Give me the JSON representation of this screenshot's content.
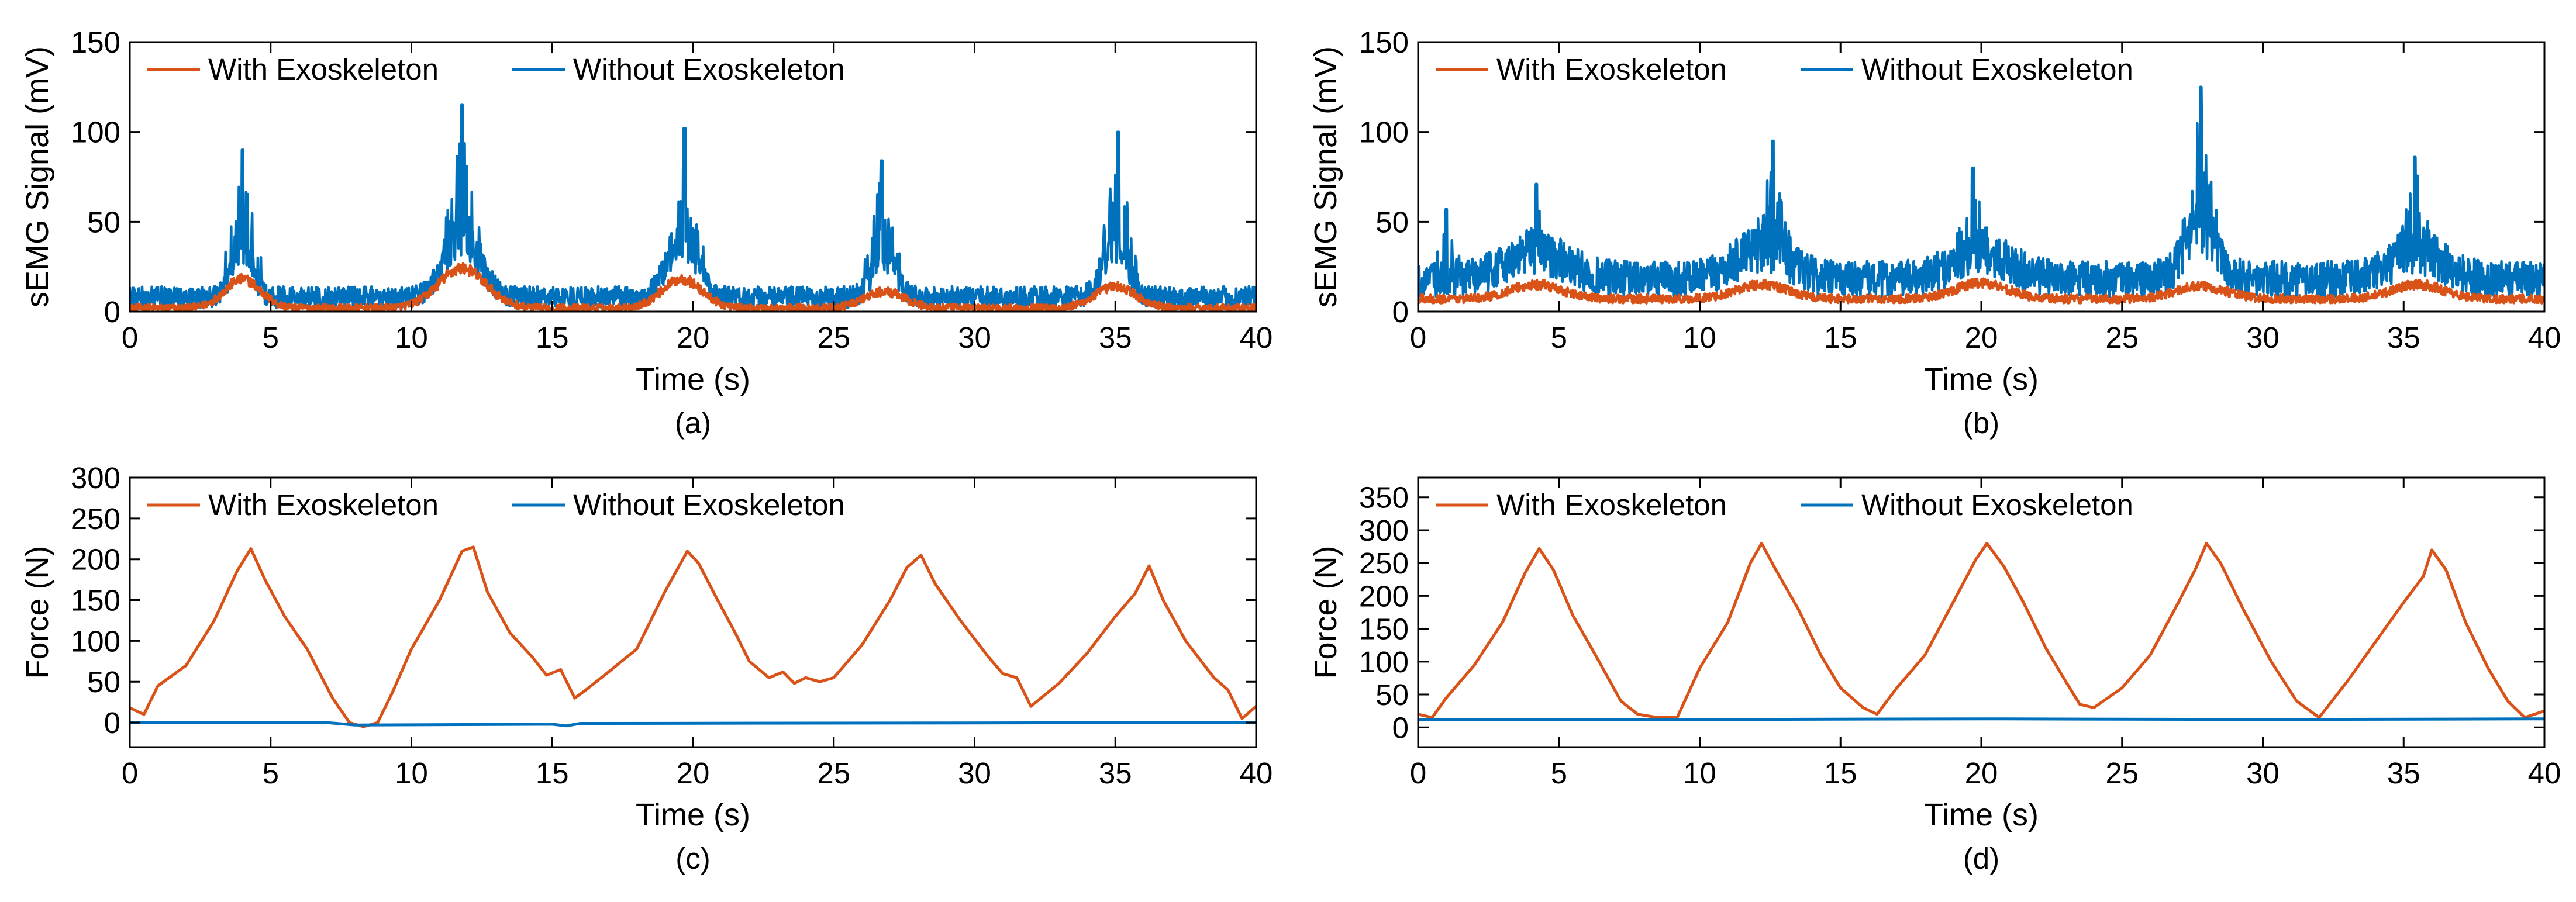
{
  "colors": {
    "with": "#D95319",
    "without": "#0072BD",
    "axis": "#000000"
  },
  "chart_data": [
    {
      "id": "a",
      "type": "line",
      "caption": "(a)",
      "xlabel": "Time (s)",
      "ylabel": "sEMG Signal (mV)",
      "xlim": [
        0,
        40
      ],
      "ylim": [
        0,
        150
      ],
      "xticks": [
        0,
        5,
        10,
        15,
        20,
        25,
        30,
        35,
        40
      ],
      "yticks": [
        0,
        50,
        100,
        150
      ],
      "legend": {
        "position": "top-left",
        "entries": [
          "With Exoskeleton",
          "Without Exoskeleton"
        ]
      },
      "grid": false,
      "noisy": true,
      "series": [
        {
          "name": "With Exoskeleton",
          "color": "#D95319",
          "baseline": 2,
          "noise": 2,
          "bumps": [
            [
              4,
              16,
              0.9
            ],
            [
              11.8,
              22,
              1.2
            ],
            [
              19.6,
              16,
              1.0
            ],
            [
              26.8,
              9,
              1.0
            ],
            [
              35,
              12,
              1.0
            ]
          ]
        },
        {
          "name": "Without Exoskeleton",
          "color": "#0072BD",
          "baseline": 8,
          "noise": 5,
          "bumps": [
            [
              4,
              28,
              0.5
            ],
            [
              11.8,
              32,
              0.9
            ],
            [
              19.6,
              28,
              0.8
            ],
            [
              26.8,
              22,
              0.6
            ],
            [
              35,
              28,
              0.6
            ]
          ],
          "peaks": [
            [
              4.0,
              90
            ],
            [
              11.8,
              115
            ],
            [
              19.7,
              102
            ],
            [
              26.7,
              84
            ],
            [
              35.1,
              100
            ]
          ]
        }
      ]
    },
    {
      "id": "b",
      "type": "line",
      "caption": "(b)",
      "xlabel": "Time (s)",
      "ylabel": "sEMG Signal (mV)",
      "xlim": [
        0,
        40
      ],
      "ylim": [
        0,
        150
      ],
      "xticks": [
        0,
        5,
        10,
        15,
        20,
        25,
        30,
        35,
        40
      ],
      "yticks": [
        0,
        50,
        100,
        150
      ],
      "legend": {
        "position": "top-left",
        "entries": [
          "With Exoskeleton",
          "Without Exoskeleton"
        ]
      },
      "grid": false,
      "noisy": true,
      "series": [
        {
          "name": "With Exoskeleton",
          "color": "#D95319",
          "baseline": 7,
          "noise": 2,
          "bumps": [
            [
              4.2,
              8,
              1.3
            ],
            [
              12.2,
              8,
              1.3
            ],
            [
              20,
              9,
              1.3
            ],
            [
              27.8,
              7,
              1.3
            ],
            [
              35.5,
              8,
              1.3
            ]
          ]
        },
        {
          "name": "Without Exoskeleton",
          "color": "#0072BD",
          "baseline": 18,
          "noise": 7,
          "bumps": [
            [
              4.2,
              15,
              1.5
            ],
            [
              12.2,
              17,
              1.3
            ],
            [
              20,
              15,
              1.4
            ],
            [
              27.8,
              28,
              0.8
            ],
            [
              35.5,
              15,
              1.3
            ]
          ],
          "peaks": [
            [
              1.0,
              57
            ],
            [
              4.2,
              71
            ],
            [
              12.6,
              95
            ],
            [
              19.7,
              80
            ],
            [
              27.8,
              125
            ],
            [
              35.4,
              86
            ]
          ]
        }
      ]
    },
    {
      "id": "c",
      "type": "line",
      "caption": "(c)",
      "xlabel": "Time (s)",
      "ylabel": "Force (N)",
      "xlim": [
        0,
        40
      ],
      "ylim": [
        -30,
        300
      ],
      "xticks": [
        0,
        5,
        10,
        15,
        20,
        25,
        30,
        35,
        40
      ],
      "yticks": [
        0,
        50,
        100,
        150,
        200,
        250,
        300
      ],
      "legend": {
        "position": "top-left",
        "entries": [
          "With Exoskeleton",
          "Without Exoskeleton"
        ]
      },
      "grid": false,
      "noisy": false,
      "series": [
        {
          "name": "With Exoskeleton",
          "color": "#D95319",
          "x": [
            0,
            0.5,
            1,
            2,
            3,
            3.8,
            4.3,
            4.8,
            5.5,
            6.3,
            7.2,
            7.8,
            8.3,
            8.8,
            9.3,
            10,
            11,
            11.8,
            12.2,
            12.7,
            13.5,
            14.3,
            14.8,
            15.3,
            15.8,
            16.2,
            17,
            18,
            19,
            19.8,
            20.2,
            20.8,
            21.5,
            22,
            22.7,
            23.2,
            23.6,
            24,
            24.5,
            25,
            26,
            27,
            27.6,
            28.1,
            28.6,
            29.5,
            30.5,
            31,
            31.5,
            32,
            33,
            34,
            35,
            35.7,
            36.2,
            36.7,
            37.5,
            38.5,
            39,
            39.5,
            40
          ],
          "values": [
            18,
            10,
            45,
            70,
            125,
            185,
            213,
            175,
            130,
            90,
            30,
            0,
            -5,
            0,
            35,
            90,
            150,
            210,
            215,
            160,
            110,
            80,
            58,
            65,
            30,
            40,
            62,
            90,
            160,
            210,
            195,
            155,
            110,
            75,
            55,
            62,
            48,
            55,
            50,
            55,
            95,
            150,
            190,
            205,
            170,
            125,
            80,
            60,
            55,
            20,
            48,
            85,
            130,
            158,
            192,
            150,
            100,
            55,
            40,
            5,
            20
          ]
        },
        {
          "name": "Without Exoskeleton",
          "color": "#0072BD",
          "x": [
            0,
            7,
            8,
            15,
            15.5,
            16,
            40
          ],
          "values": [
            0,
            0,
            -3,
            -2,
            -4,
            -1,
            0
          ]
        }
      ]
    },
    {
      "id": "d",
      "type": "line",
      "caption": "(d)",
      "xlabel": "Time (s)",
      "ylabel": "Force (N)",
      "xlim": [
        0,
        40
      ],
      "ylim": [
        -30,
        380
      ],
      "xticks": [
        0,
        5,
        10,
        15,
        20,
        25,
        30,
        35,
        40
      ],
      "yticks": [
        0,
        50,
        100,
        150,
        200,
        250,
        300,
        350
      ],
      "legend": {
        "position": "top-left",
        "entries": [
          "With Exoskeleton",
          "Without Exoskeleton"
        ]
      },
      "grid": false,
      "noisy": false,
      "series": [
        {
          "name": "With Exoskeleton",
          "color": "#D95319",
          "x": [
            0,
            0.5,
            1,
            2,
            3,
            3.8,
            4.3,
            4.8,
            5.5,
            6.3,
            7.2,
            7.8,
            8.5,
            9.2,
            10,
            11,
            11.8,
            12.2,
            12.7,
            13.5,
            14.3,
            15,
            15.8,
            16.3,
            17,
            18,
            19,
            19.8,
            20.2,
            20.8,
            21.5,
            22.3,
            23,
            23.5,
            24,
            25,
            26,
            27,
            27.6,
            28,
            28.5,
            29.3,
            30.3,
            31.2,
            32,
            33,
            34,
            35,
            35.7,
            36,
            36.5,
            37.2,
            38,
            38.7,
            39.3,
            40
          ],
          "values": [
            20,
            15,
            45,
            95,
            160,
            235,
            272,
            240,
            170,
            110,
            40,
            20,
            15,
            15,
            90,
            160,
            250,
            280,
            240,
            180,
            110,
            60,
            30,
            20,
            60,
            110,
            190,
            255,
            280,
            245,
            190,
            120,
            70,
            35,
            30,
            60,
            110,
            190,
            240,
            280,
            250,
            180,
            100,
            40,
            15,
            70,
            130,
            190,
            230,
            270,
            240,
            160,
            90,
            40,
            15,
            25
          ]
        },
        {
          "name": "Without Exoskeleton",
          "color": "#0072BD",
          "x": [
            0,
            10,
            20,
            30,
            40
          ],
          "values": [
            12,
            12,
            13,
            12,
            13
          ]
        }
      ]
    }
  ]
}
